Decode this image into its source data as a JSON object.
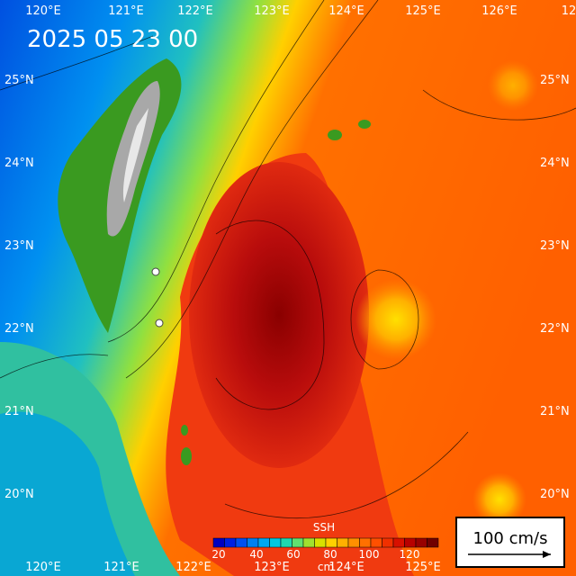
{
  "date": "2025 05 23 00",
  "lon_top": [
    "120°E",
    "121°E",
    "122°E",
    "123°E",
    "124°E",
    "125°E",
    "126°E",
    "12"
  ],
  "lon_bottom": [
    "120°E",
    "121°E",
    "122°E",
    "123°E",
    "124°E",
    "125°E"
  ],
  "lat_left": [
    "25°N",
    "24°N",
    "23°N",
    "22°N",
    "21°N",
    "20°N"
  ],
  "lat_right": [
    "25°N",
    "24°N",
    "23°N",
    "22°N",
    "21°N",
    "20°N"
  ],
  "colorbar": {
    "title": "SSH",
    "ticks": [
      "20",
      "40",
      "60",
      "80",
      "100",
      "120"
    ],
    "unit": "cm"
  },
  "scale": "100 cm/s"
}
